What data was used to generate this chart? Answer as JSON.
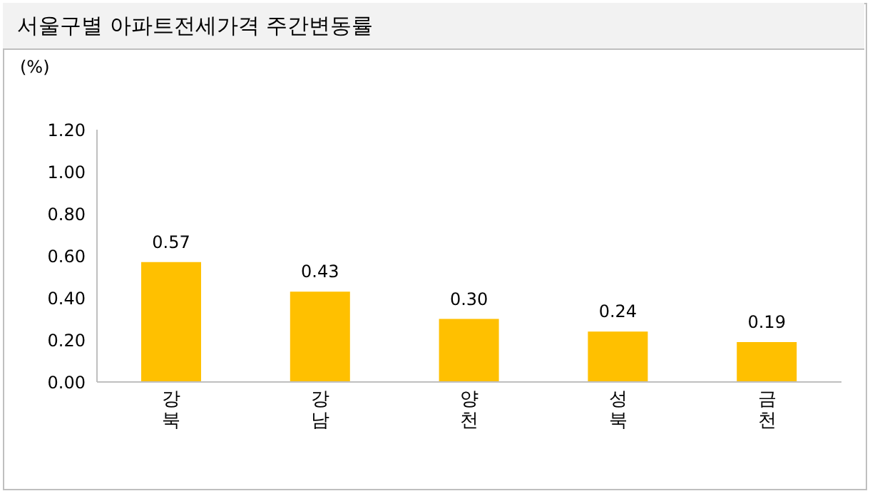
{
  "chart_data": {
    "type": "bar",
    "title": "서울구별 아파트전세가격 주간변동률",
    "ylabel": "(%)",
    "categories": [
      "강북",
      "강남",
      "양천",
      "성북",
      "금천"
    ],
    "values": [
      0.57,
      0.43,
      0.3,
      0.24,
      0.19
    ],
    "value_labels": [
      "0.57",
      "0.43",
      "0.30",
      "0.24",
      "0.19"
    ],
    "color": "#ffc000",
    "ylim": [
      0,
      1.2
    ],
    "yticks": [
      {
        "value": 0,
        "label": "0.00"
      },
      {
        "value": 0.2,
        "label": "0.20"
      },
      {
        "value": 0.4,
        "label": "0.40"
      },
      {
        "value": 0.6,
        "label": "0.60"
      },
      {
        "value": 0.8,
        "label": "0.80"
      },
      {
        "value": 1.0,
        "label": "1.00"
      },
      {
        "value": 1.2,
        "label": "1.20"
      }
    ],
    "grid": false,
    "legend": false
  }
}
